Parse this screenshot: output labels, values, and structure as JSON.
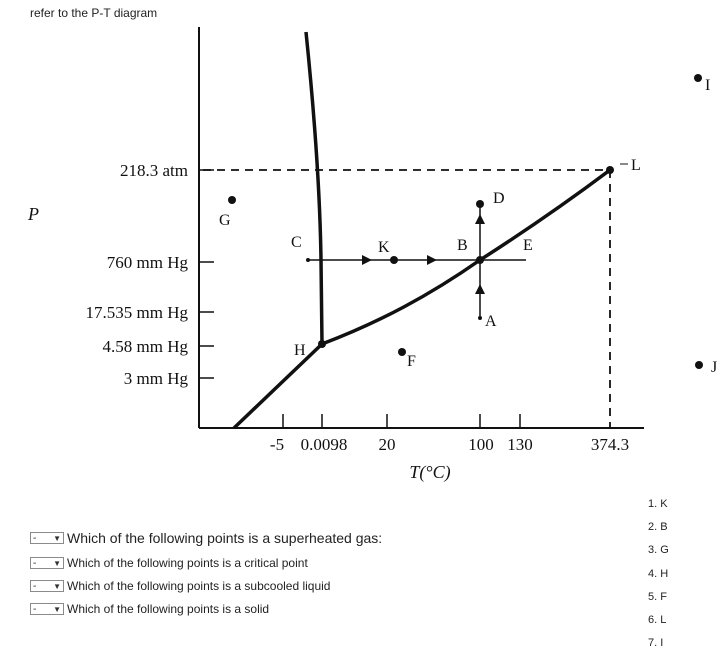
{
  "instruction": "refer to the P-T diagram",
  "diagram": {
    "p_axis_label": "P",
    "t_axis_label": "T(°C)",
    "p_ticks": [
      "218.3 atm",
      "760 mm Hg",
      "17.535 mm Hg",
      "4.58 mm Hg",
      "3 mm Hg"
    ],
    "t_ticks": [
      "-5",
      "0.0098",
      "20",
      "100",
      "130",
      "374.3"
    ],
    "points": [
      "A",
      "B",
      "C",
      "D",
      "E",
      "F",
      "G",
      "H",
      "I",
      "J",
      "K",
      "L"
    ]
  },
  "questions": [
    {
      "select_value": "-",
      "text": "Which of the following points is a superheated gas:"
    },
    {
      "select_value": "-",
      "text": "Which of the following points is a critical point"
    },
    {
      "select_value": "-",
      "text": "Which of the following points is a subcooled liquid"
    },
    {
      "select_value": "-",
      "text": "Which of the following points is a solid"
    }
  ],
  "options": [
    "1. K",
    "2. B",
    "3. G",
    "4. H",
    "5. F",
    "6. L",
    "7. I"
  ],
  "colors": {
    "ink": "#111111",
    "text": "#222222"
  }
}
